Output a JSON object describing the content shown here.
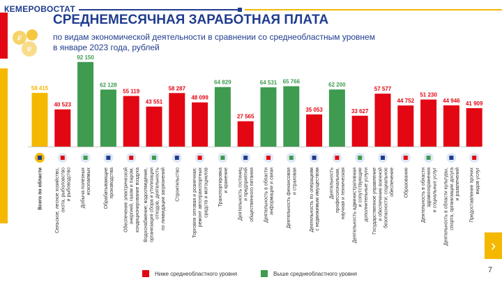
{
  "header": {
    "brand": "КЕМЕРОВОСТАТ",
    "title": "СРЕДНЕМЕСЯЧНАЯ ЗАРАБОТНАЯ ПЛАТА",
    "subtitle_line1": "по видам экономической деятельности в сравнении со среднеобластным уровнем",
    "subtitle_line2": "в январе 2023 года, рублей"
  },
  "colors": {
    "below": "#e30613",
    "above": "#3e9b4f",
    "total": "#f5b800",
    "brand": "#1f3c8f"
  },
  "legend": {
    "below": "Ниже среднеобластного уровня",
    "above": "Выше среднеобластного уровня"
  },
  "nav": {
    "next_icon": "›"
  },
  "page_number": "7",
  "chart_data": {
    "type": "bar",
    "title": "Среднемесячная заработная плата по видам экономической деятельности в январе 2023 года, рублей",
    "ylim": [
      0,
      95000
    ],
    "reference_value": 58415,
    "categories": [
      {
        "label": [
          "Всего по области"
        ],
        "value": 58415,
        "display": "58 415",
        "status": "total",
        "icon": "region-total-icon"
      },
      {
        "label": [
          "Сельское, лесное хозяйство,",
          "охота, рыболовство",
          "и рыбоводство"
        ],
        "value": 40523,
        "display": "40 523",
        "status": "below",
        "icon": "agriculture-tools-icon"
      },
      {
        "label": [
          "Добыча полезных",
          "ископаемых"
        ],
        "value": 92150,
        "display": "92 150",
        "status": "above",
        "icon": "mining-shovel-icon"
      },
      {
        "label": [
          "Обрабатывающие",
          "производства"
        ],
        "value": 62128,
        "display": "62 128",
        "status": "above",
        "icon": "manufacturing-gear-icon"
      },
      {
        "label": [
          "Обеспечение электрической",
          "энергией, газом и паром;",
          "кондиционирование воздуха"
        ],
        "value": 55119,
        "display": "55 119",
        "status": "below",
        "icon": "energy-bulb-icon"
      },
      {
        "label": [
          "Водоснабжение; водоотведение,",
          "организация сбора и утилизации",
          "отходов, деятельность",
          "по ликвидации загрязнений"
        ],
        "value": 43551,
        "display": "43 551",
        "status": "below",
        "icon": "water-tap-icon"
      },
      {
        "label": [
          "Строительство"
        ],
        "value": 58287,
        "display": "58 287",
        "status": "below",
        "icon": "construction-crane-icon"
      },
      {
        "label": [
          "Торговля оптовая и розничная;",
          "ремонт автотранспортных",
          "средств и мотоциклов"
        ],
        "value": 48099,
        "display": "48 099",
        "status": "below",
        "icon": "shopping-cart-icon"
      },
      {
        "label": [
          "Транспортировка",
          "и хранение"
        ],
        "value": 64829,
        "display": "64 829",
        "status": "above",
        "icon": "truck-icon"
      },
      {
        "label": [
          "Деятельность гостиниц",
          "и предприятий",
          "общественного питания"
        ],
        "value": 27565,
        "display": "27 565",
        "status": "below",
        "icon": "hotel-food-icon"
      },
      {
        "label": [
          "Деятельность в области",
          "информации и связи"
        ],
        "value": 64531,
        "display": "64 531",
        "status": "above",
        "icon": "computer-phone-icon"
      },
      {
        "label": [
          "Деятельность финансовая",
          "и страховая"
        ],
        "value": 65766,
        "display": "65 766",
        "status": "above",
        "icon": "finance-document-icon"
      },
      {
        "label": [
          "Деятельность по операциям",
          "с недвижимым имуществом"
        ],
        "value": 35053,
        "display": "35 053",
        "status": "below",
        "icon": "real-estate-icon"
      },
      {
        "label": [
          "Деятельность",
          "профессиональная,",
          "научная и техническая"
        ],
        "value": 62200,
        "display": "62 200",
        "status": "above",
        "icon": "microscope-icon"
      },
      {
        "label": [
          "Деятельность административная",
          "и сопутствующие",
          "дополнительные услуги"
        ],
        "value": 33627,
        "display": "33 627",
        "status": "below",
        "icon": "office-building-icon"
      },
      {
        "label": [
          "Государственное управление",
          "и обеспечение военной",
          "безопасности; социальное",
          "обеспечение"
        ],
        "value": 57577,
        "display": "57 577",
        "status": "below",
        "icon": "official-person-icon"
      },
      {
        "label": [
          "Образование"
        ],
        "value": 44752,
        "display": "44 752",
        "status": "below",
        "icon": "graduation-cap-icon"
      },
      {
        "label": [
          "Деятельность в области",
          "здравоохранения",
          "и социальных услуг"
        ],
        "value": 51230,
        "display": "51 230",
        "status": "below",
        "icon": "healthcare-icon"
      },
      {
        "label": [
          "Деятельность в области культуры,",
          "спорта, организации досуга",
          "и развлечений"
        ],
        "value": 44946,
        "display": "44 946",
        "status": "below",
        "icon": "culture-sport-icon"
      },
      {
        "label": [
          "Предоставление прочих",
          "видов услуг"
        ],
        "value": 41909,
        "display": "41 909",
        "status": "below",
        "icon": "services-person-icon"
      }
    ]
  }
}
